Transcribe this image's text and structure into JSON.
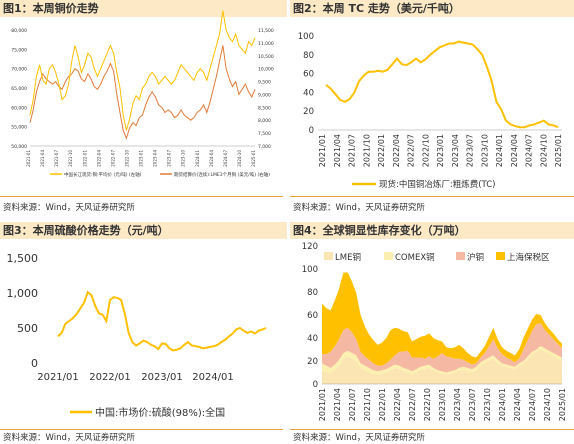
{
  "chart_data": [
    {
      "type": "line",
      "title": "图1：本周铜价走势",
      "y_left_ticks": [
        "50,000",
        "55,000",
        "60,000",
        "65,000",
        "70,000",
        "75,000",
        "80,000"
      ],
      "y_right_ticks": [
        "7,000",
        "7,500",
        "8,000",
        "8,500",
        "9,000",
        "9,500",
        "10,000",
        "10,500",
        "11,000",
        "11,500"
      ],
      "ylim_left": [
        50000,
        80000
      ],
      "ylim_right": [
        7000,
        11500
      ],
      "x_ticks": [
        "2021-01",
        "2021-04",
        "2021-07",
        "2021-10",
        "2022-01",
        "2022-04",
        "2022-07",
        "2022-10",
        "2023-01",
        "2023-04",
        "2023-07",
        "2023-10",
        "2024-01",
        "2024-04",
        "2024-07",
        "2024-10",
        "2025-01"
      ],
      "series": [
        {
          "name": "中国长江现货:铜:平均价 (元/吨) (左轴)",
          "axis": "left",
          "values": [
            58000,
            62000,
            68000,
            71000,
            67000,
            66000,
            70000,
            71000,
            69000,
            66000,
            62000,
            63000,
            66000,
            72000,
            76000,
            73000,
            69000,
            71000,
            74000,
            73000,
            70000,
            68000,
            70000,
            72000,
            74000,
            76000,
            74000,
            69000,
            65000,
            58000,
            54000,
            57000,
            61000,
            63000,
            62000,
            65000,
            66000,
            68000,
            69000,
            68000,
            66000,
            67000,
            68000,
            67000,
            66000,
            67000,
            69000,
            71000,
            70000,
            69000,
            68000,
            67000,
            69000,
            70000,
            69000,
            67000,
            70000,
            73000,
            76000,
            79000,
            85000,
            80000,
            78000,
            77000,
            79000,
            76000,
            75000,
            74000,
            77000,
            76000,
            78000
          ]
        },
        {
          "name": "期货结算价(连续):LME3个月铜 (美元/吨) (右轴)",
          "axis": "right",
          "values": [
            7900,
            8400,
            9100,
            9500,
            9800,
            9600,
            9500,
            9400,
            9500,
            9300,
            9200,
            9500,
            9700,
            9800,
            10000,
            9900,
            9600,
            9500,
            9800,
            9600,
            9300,
            9200,
            9400,
            9700,
            9900,
            10200,
            9900,
            9000,
            8300,
            7600,
            7300,
            7700,
            7900,
            7800,
            8100,
            8200,
            8600,
            8900,
            9100,
            8900,
            8600,
            8500,
            8300,
            8400,
            8300,
            8100,
            8200,
            8400,
            8200,
            8100,
            8000,
            8100,
            8300,
            8400,
            8600,
            8300,
            8700,
            9200,
            9700,
            10300,
            10900,
            10000,
            9600,
            9300,
            9500,
            9000,
            9200,
            9400,
            9100,
            8900,
            9200
          ]
        }
      ]
    },
    {
      "type": "line",
      "title": "图2：本周 TC 走势（美元/千吨）",
      "ylim": [
        0,
        100
      ],
      "y_ticks": [
        "0",
        "20",
        "40",
        "60",
        "80",
        "100"
      ],
      "x_ticks": [
        "2021/01",
        "2021/04",
        "2021/07",
        "2021/10",
        "2022/01",
        "2022/04",
        "2022/07",
        "2022/10",
        "2023/01",
        "2023/04",
        "2023/07",
        "2023/10",
        "2024/01",
        "2024/04",
        "2024/07",
        "2024/10",
        "2025/01"
      ],
      "series": [
        {
          "name": "现货:中国铜冶炼厂:粗炼费(TC)",
          "values": [
            48,
            44,
            38,
            32,
            30,
            33,
            40,
            52,
            58,
            62,
            62,
            63,
            62,
            64,
            70,
            76,
            70,
            69,
            72,
            76,
            72,
            75,
            80,
            84,
            88,
            90,
            92,
            92,
            94,
            93,
            92,
            91,
            86,
            80,
            67,
            52,
            30,
            22,
            10,
            6,
            4,
            3,
            3,
            5,
            6,
            8,
            10,
            6,
            5,
            3
          ]
        }
      ]
    },
    {
      "type": "line",
      "title": "图3：本周硫酸价格走势（元/吨）",
      "ylim": [
        0,
        1500
      ],
      "y_ticks": [
        "0",
        "500",
        "1,000",
        "1,500"
      ],
      "x_ticks": [
        "2021/01",
        "2022/01",
        "2023/01",
        "2024/01"
      ],
      "series": [
        {
          "name": "中国:市场价:硫酸(98%):全国",
          "values": [
            380,
            430,
            560,
            600,
            640,
            700,
            780,
            860,
            1010,
            970,
            820,
            710,
            690,
            600,
            900,
            940,
            930,
            900,
            700,
            430,
            300,
            250,
            280,
            320,
            300,
            260,
            240,
            200,
            280,
            270,
            210,
            180,
            190,
            210,
            260,
            300,
            250,
            240,
            230,
            210,
            220,
            230,
            240,
            260,
            300,
            330,
            380,
            420,
            480,
            500,
            460,
            430,
            450,
            420,
            460,
            480,
            500
          ]
        }
      ]
    },
    {
      "type": "area",
      "title": "图4：全球铜显性库存变化（万吨）",
      "ylim": [
        0,
        120
      ],
      "y_ticks": [
        "0",
        "20",
        "40",
        "60",
        "80",
        "100",
        "120"
      ],
      "x_ticks": [
        "2021/01",
        "2021/04",
        "2021/07",
        "2021/10",
        "2022/01",
        "2022/04",
        "2022/07",
        "2022/10",
        "2023/01",
        "2023/04",
        "2023/07",
        "2023/10",
        "2024/01",
        "2024/04",
        "2024/07",
        "2024/10",
        "2025/01"
      ],
      "legend": [
        "LME铜",
        "COMEX铜",
        "沪铜",
        "上海保税区"
      ],
      "series": [
        {
          "name": "LME铜",
          "values": [
            12,
            10,
            9,
            12,
            16,
            22,
            24,
            22,
            20,
            14,
            12,
            10,
            9,
            8,
            9,
            10,
            12,
            14,
            13,
            11,
            10,
            8,
            10,
            12,
            13,
            14,
            12,
            10,
            9,
            8,
            9,
            10,
            12,
            12,
            11,
            10,
            12,
            16,
            18,
            20,
            22,
            18,
            16,
            15,
            14,
            13,
            16,
            18,
            22,
            26,
            28,
            30,
            28,
            26,
            24,
            22,
            20
          ]
        },
        {
          "name": "COMEX铜",
          "values": [
            6,
            6,
            5,
            5,
            5,
            5,
            5,
            5,
            5,
            4,
            4,
            4,
            3,
            3,
            3,
            3,
            3,
            3,
            3,
            3,
            3,
            3,
            3,
            3,
            3,
            3,
            2,
            2,
            2,
            2,
            2,
            2,
            2,
            3,
            3,
            3,
            3,
            3,
            3,
            3,
            3,
            3,
            2,
            2,
            2,
            2,
            2,
            2,
            2,
            2,
            2,
            3,
            3,
            3,
            3,
            3,
            3
          ]
        },
        {
          "name": "沪铜",
          "values": [
            8,
            10,
            14,
            16,
            18,
            20,
            20,
            18,
            14,
            10,
            8,
            7,
            6,
            5,
            4,
            5,
            6,
            8,
            12,
            14,
            16,
            12,
            10,
            8,
            6,
            7,
            8,
            12,
            16,
            14,
            12,
            10,
            8,
            6,
            5,
            4,
            3,
            4,
            6,
            10,
            14,
            10,
            8,
            6,
            5,
            4,
            4,
            10,
            14,
            18,
            22,
            20,
            16,
            14,
            12,
            10,
            8
          ]
        },
        {
          "name": "上海保税区",
          "values": [
            44,
            40,
            36,
            40,
            44,
            50,
            48,
            44,
            40,
            32,
            26,
            22,
            20,
            18,
            20,
            22,
            26,
            24,
            20,
            18,
            16,
            14,
            16,
            18,
            20,
            20,
            18,
            14,
            10,
            8,
            8,
            10,
            12,
            10,
            8,
            7,
            5,
            5,
            6,
            8,
            10,
            8,
            6,
            6,
            6,
            6,
            8,
            10,
            10,
            10,
            9,
            7,
            6,
            5,
            5,
            4,
            4
          ]
        }
      ]
    }
  ],
  "sources": {
    "s1": "资料来源：Wind，天风证券研究所",
    "s2": "资料来源：Wind，天风证券研究所",
    "s3": "资料来源：Wind，天风证券研究所",
    "s4": "资料来源：Wind，天风证券研究所"
  },
  "colors": {
    "line_yellow": "#ffc000",
    "line_orange": "#e07b39",
    "lme": "#fbe5b3",
    "comex": "#fbf0b0",
    "hucu": "#f5b8a2",
    "bonded": "#ffc000",
    "title_bg": "#fde9c6",
    "rule": "#f0a33a"
  }
}
